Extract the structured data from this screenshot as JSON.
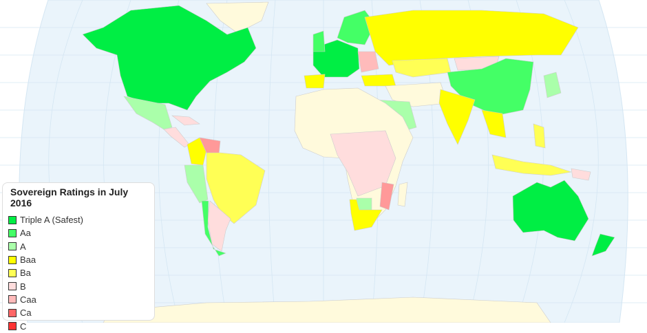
{
  "legend": {
    "title": "Sovereign Ratings in July 2016",
    "items": [
      {
        "label": "Triple A (Safest)",
        "color": "#00ee44"
      },
      {
        "label": "Aa",
        "color": "#44ff66"
      },
      {
        "label": "A",
        "color": "#aaffaa"
      },
      {
        "label": "Baa",
        "color": "#ffff00"
      },
      {
        "label": "Ba",
        "color": "#ffff55"
      },
      {
        "label": "B",
        "color": "#ffdddd"
      },
      {
        "label": "Caa",
        "color": "#ffbbbb"
      },
      {
        "label": "Ca",
        "color": "#ff6666"
      },
      {
        "label": "C",
        "color": "#ff3333"
      }
    ]
  },
  "colors": {
    "ocean": "#eaf4fb",
    "unrated": "#fffadc",
    "grid": "#d4e6f3"
  }
}
